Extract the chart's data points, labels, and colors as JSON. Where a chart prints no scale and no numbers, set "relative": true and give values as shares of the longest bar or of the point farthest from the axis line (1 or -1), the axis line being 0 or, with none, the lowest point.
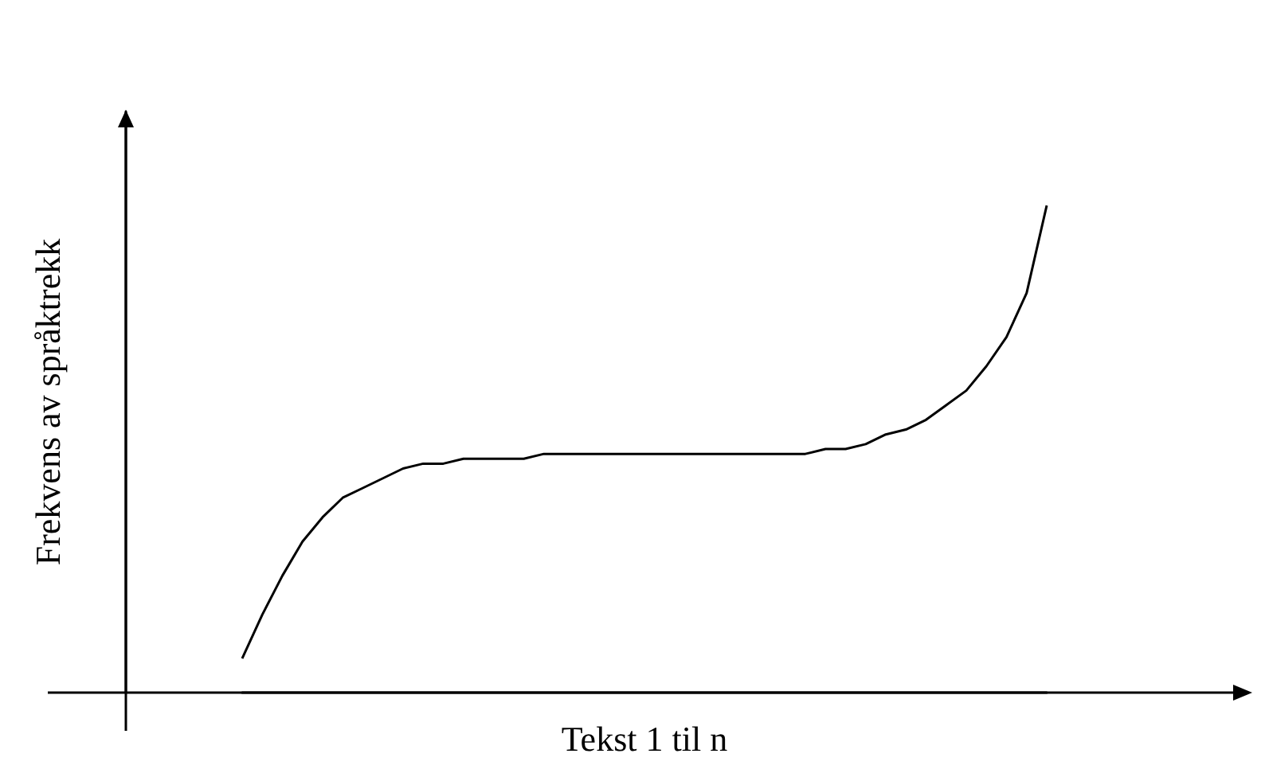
{
  "chart_data": {
    "type": "line",
    "xlabel": "Tekst 1 til n",
    "ylabel": "Frekvens av språktrekk",
    "relative": true,
    "grid": false,
    "marker": "none",
    "line_style": "solid",
    "categories": [
      null,
      null,
      null,
      null,
      null,
      null,
      null,
      null,
      null,
      null,
      null,
      null,
      null,
      null,
      null,
      null,
      null,
      null,
      null,
      null,
      null,
      null,
      null,
      null,
      null,
      null,
      null,
      null,
      null,
      null,
      null,
      null,
      null,
      null,
      null,
      null,
      null,
      null,
      null,
      null,
      null
    ],
    "series": [
      {
        "color": "#000000",
        "values": [
          0.07,
          0.16,
          0.24,
          0.31,
          0.36,
          0.4,
          0.42,
          0.44,
          0.46,
          0.47,
          0.47,
          0.48,
          0.48,
          0.48,
          0.48,
          0.49,
          0.49,
          0.49,
          0.49,
          0.49,
          0.49,
          0.49,
          0.49,
          0.49,
          0.49,
          0.49,
          0.49,
          0.49,
          0.49,
          0.5,
          0.5,
          0.51,
          0.53,
          0.54,
          0.56,
          0.59,
          0.62,
          0.67,
          0.73,
          0.82,
          1
        ]
      }
    ]
  }
}
